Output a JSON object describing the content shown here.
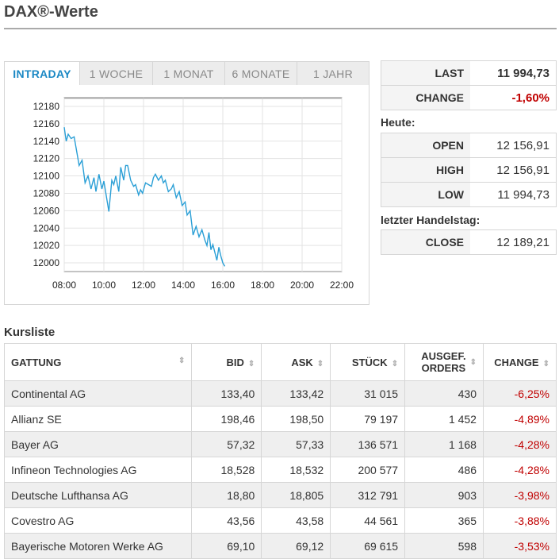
{
  "title": "DAX®-Werte",
  "tabs": [
    {
      "label": "INTRADAY",
      "active": true
    },
    {
      "label": "1 WOCHE",
      "active": false
    },
    {
      "label": "1 MONAT",
      "active": false
    },
    {
      "label": "6 MONATE",
      "active": false
    },
    {
      "label": "1 JAHR",
      "active": false
    }
  ],
  "chart_data": {
    "type": "line",
    "color": "#2a9fd6",
    "xlabel": "",
    "ylabel": "",
    "x_ticks": [
      "08:00",
      "10:00",
      "12:00",
      "14:00",
      "16:00",
      "18:00",
      "20:00",
      "22:00"
    ],
    "y_ticks": [
      "12000",
      "12020",
      "12040",
      "12060",
      "12080",
      "12100",
      "12120",
      "12140",
      "12160",
      "12180"
    ],
    "xlim": [
      8,
      22
    ],
    "ylim": [
      11990,
      12190
    ],
    "reference_line": 12189.21,
    "grid": true,
    "series": [
      {
        "x": [
          8.0,
          8.1,
          8.2,
          8.35,
          8.5,
          8.6,
          8.75,
          8.9,
          9.05,
          9.2,
          9.35,
          9.5,
          9.6,
          9.75,
          9.9,
          10.0,
          10.1,
          10.25,
          10.4,
          10.5,
          10.6,
          10.75,
          10.85,
          11.0,
          11.1,
          11.2,
          11.35,
          11.5,
          11.6,
          11.75,
          11.85,
          11.95,
          12.1,
          12.25,
          12.4,
          12.5,
          12.6,
          12.75,
          12.9,
          13.0,
          13.1,
          13.25,
          13.4,
          13.5,
          13.65,
          13.8,
          13.95,
          14.1,
          14.2,
          14.35,
          14.5,
          14.65,
          14.8,
          14.95,
          15.1,
          15.2,
          15.3,
          15.4,
          15.5,
          15.6,
          15.7,
          15.8,
          15.9,
          16.0,
          16.1
        ],
        "y": [
          12156,
          12140,
          12148,
          12143,
          12145,
          12132,
          12112,
          12118,
          12092,
          12100,
          12085,
          12098,
          12082,
          12102,
          12085,
          12094,
          12080,
          12059,
          12095,
          12090,
          12100,
          12082,
          12110,
          12095,
          12112,
          12112,
          12095,
          12088,
          12090,
          12078,
          12084,
          12080,
          12092,
          12090,
          12088,
          12098,
          12102,
          12095,
          12100,
          12092,
          12095,
          12082,
          12085,
          12090,
          12075,
          12082,
          12066,
          12070,
          12055,
          12060,
          12032,
          12042,
          12030,
          12038,
          12026,
          12020,
          12035,
          12015,
          12021,
          12012,
          12003,
          12018,
          12008,
          12000,
          11996
        ]
      }
    ]
  },
  "quote": {
    "last_label": "LAST",
    "last_value": "11 994,73",
    "change_label": "CHANGE",
    "change_value": "-1,60%",
    "today_label": "Heute:",
    "open_label": "OPEN",
    "open_value": "12 156,91",
    "high_label": "HIGH",
    "high_value": "12 156,91",
    "low_label": "LOW",
    "low_value": "11 994,73",
    "prev_label": "letzter Handelstag:",
    "close_label": "CLOSE",
    "close_value": "12 189,21"
  },
  "kursliste": {
    "title": "Kursliste",
    "headers": {
      "gattung": "GATTUNG",
      "bid": "BID",
      "ask": "ASK",
      "stueck": "STÜCK",
      "orders_1": "AUSGEF.",
      "orders_2": "ORDERS",
      "change": "CHANGE"
    },
    "rows": [
      {
        "name": "Continental AG",
        "bid": "133,40",
        "ask": "133,42",
        "stueck": "31 015",
        "orders": "430",
        "change": "-6,25%"
      },
      {
        "name": "Allianz SE",
        "bid": "198,46",
        "ask": "198,50",
        "stueck": "79 197",
        "orders": "1 452",
        "change": "-4,89%"
      },
      {
        "name": "Bayer AG",
        "bid": "57,32",
        "ask": "57,33",
        "stueck": "136 571",
        "orders": "1 168",
        "change": "-4,28%"
      },
      {
        "name": "Infineon Technologies AG",
        "bid": "18,528",
        "ask": "18,532",
        "stueck": "200 577",
        "orders": "486",
        "change": "-4,28%"
      },
      {
        "name": "Deutsche Lufthansa AG",
        "bid": "18,80",
        "ask": "18,805",
        "stueck": "312 791",
        "orders": "903",
        "change": "-3,98%"
      },
      {
        "name": "Covestro AG",
        "bid": "43,56",
        "ask": "43,58",
        "stueck": "44 561",
        "orders": "365",
        "change": "-3,88%"
      },
      {
        "name": "Bayerische Motoren Werke AG",
        "bid": "69,10",
        "ask": "69,12",
        "stueck": "69 615",
        "orders": "598",
        "change": "-3,53%"
      }
    ]
  }
}
